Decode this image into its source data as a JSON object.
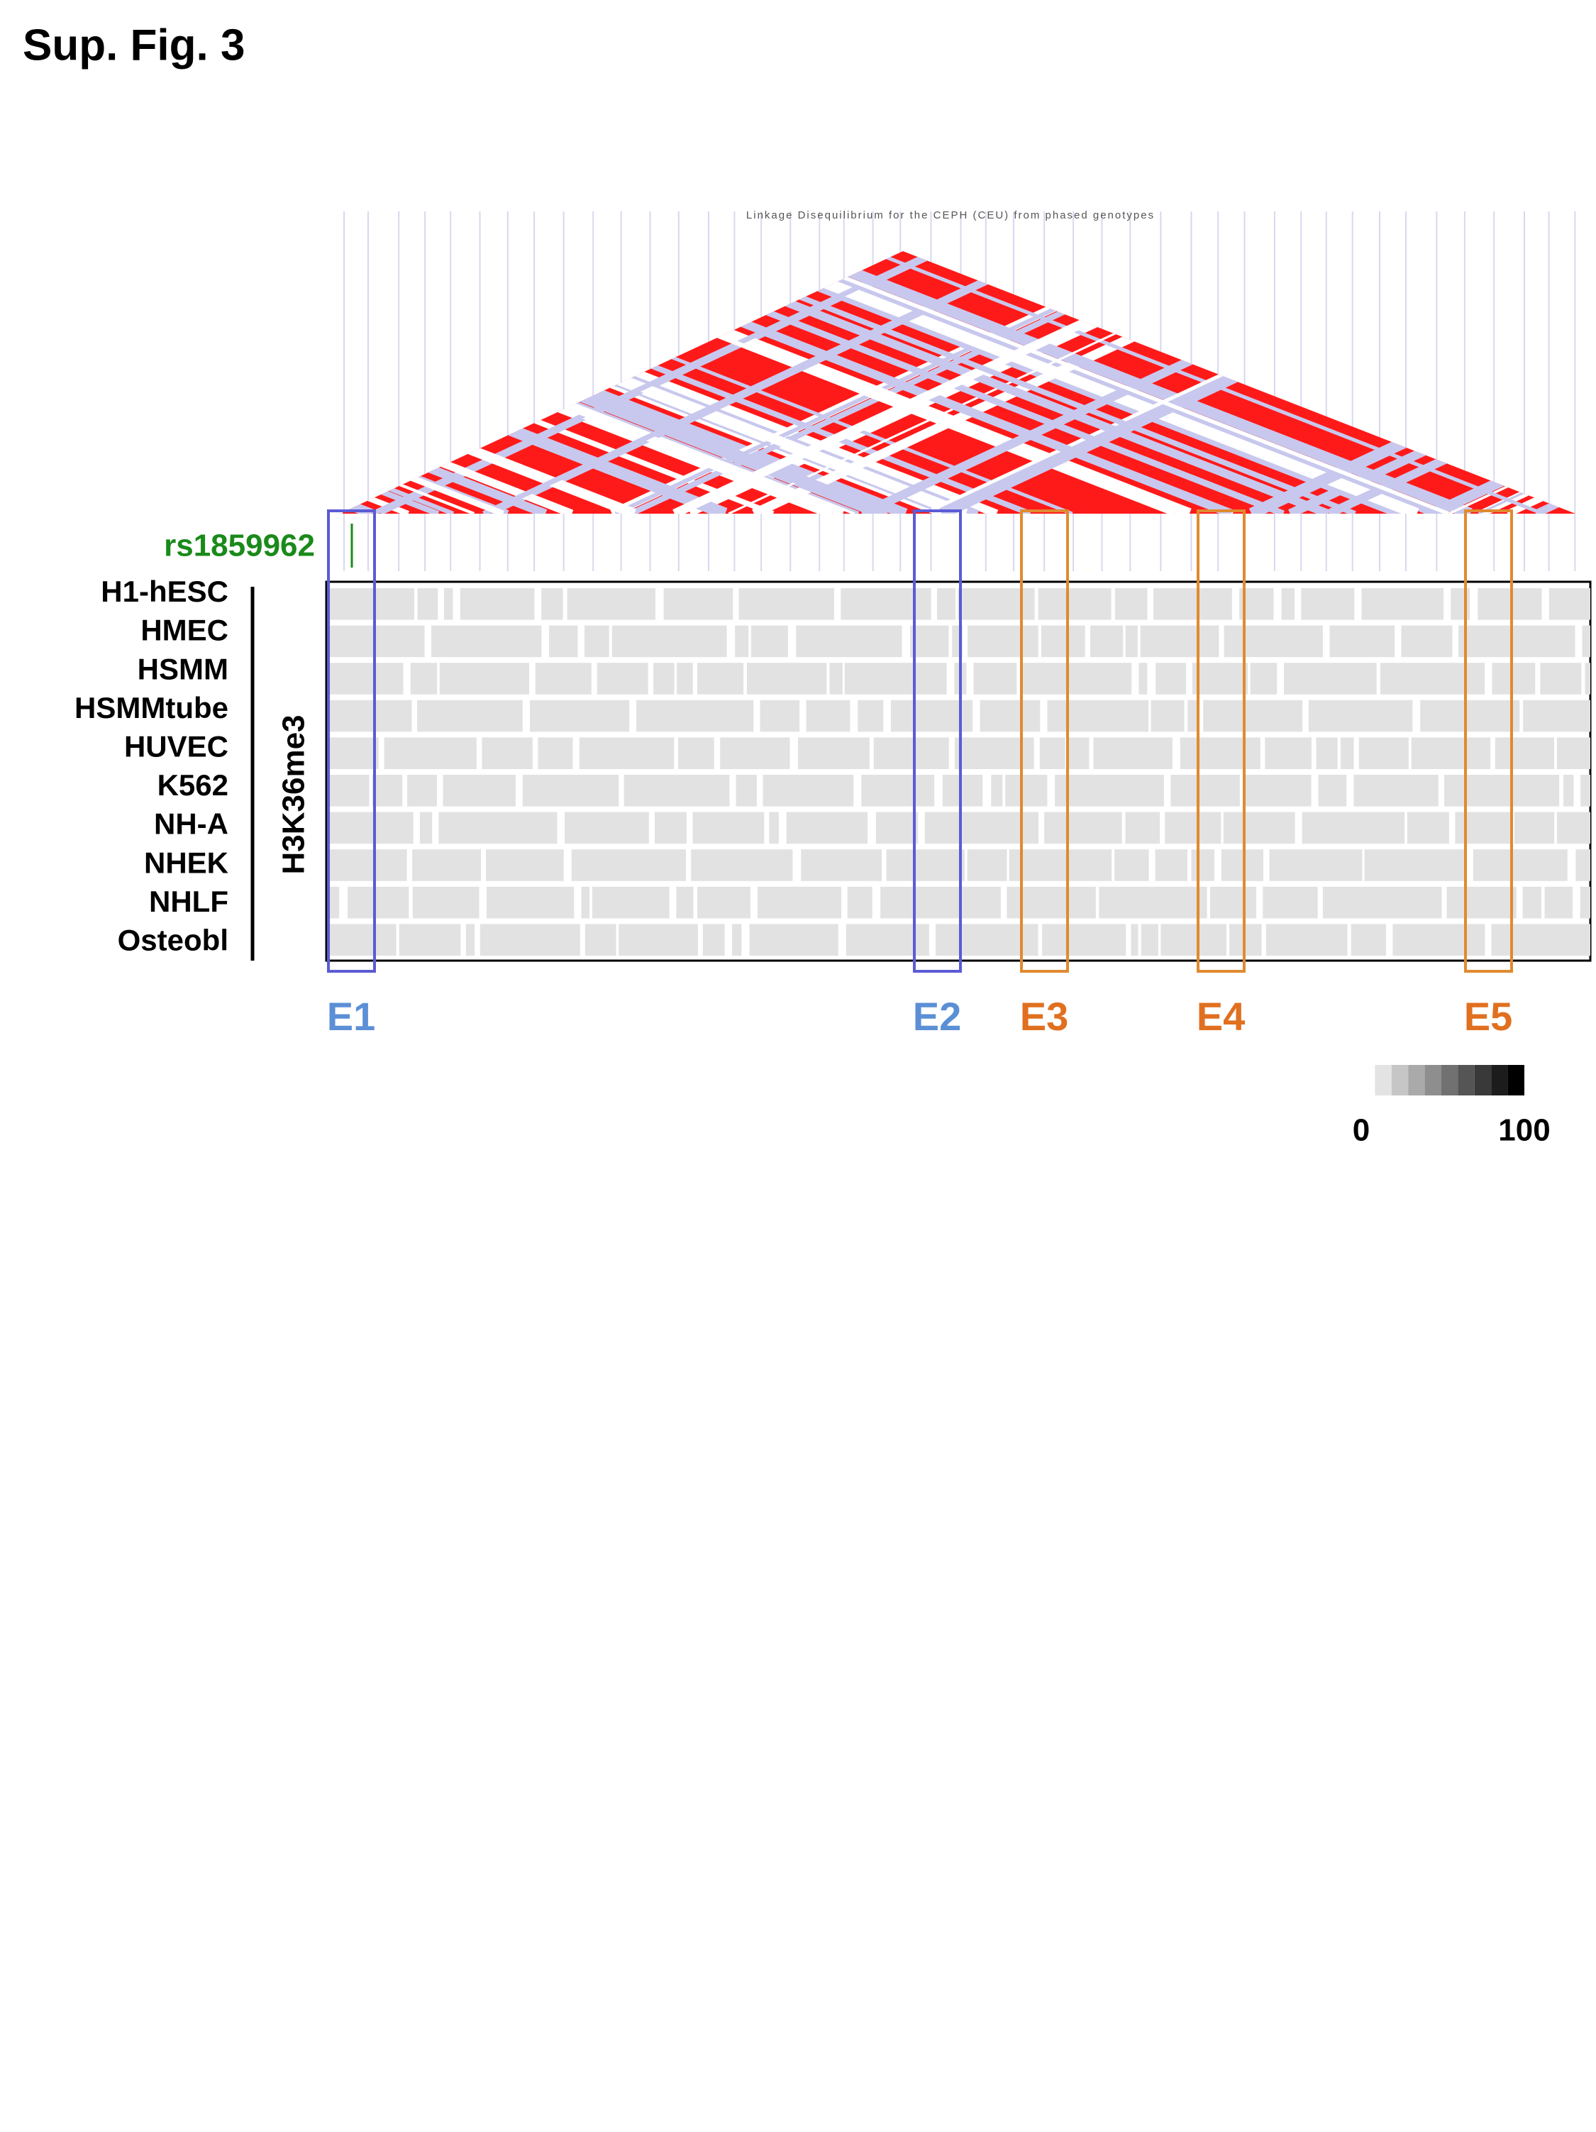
{
  "figure_label": "Sup. Fig. 3",
  "ld_plot": {
    "title": "Linkage Disequilibrium for the CEPH (CEU) from phased genotypes"
  },
  "snp": "rs1859962",
  "track": {
    "mark": "H3K36me3",
    "cell_lines": [
      "H1-hESC",
      "HMEC",
      "HSMM",
      "HSMMtube",
      "HUVEC",
      "K562",
      "NH-A",
      "NHEK",
      "NHLF",
      "Osteobl"
    ]
  },
  "regions": [
    {
      "label": "E1",
      "color": "#5b8fd6",
      "box_color": "#5b5bd6"
    },
    {
      "label": "E2",
      "color": "#5b8fd6",
      "box_color": "#5b5bd6"
    },
    {
      "label": "E3",
      "color": "#e07020",
      "box_color": "#e08a30"
    },
    {
      "label": "E4",
      "color": "#e07020",
      "box_color": "#e08a30"
    },
    {
      "label": "E5",
      "color": "#e07020",
      "box_color": "#e08a30"
    }
  ],
  "legend": {
    "min_label": 0,
    "max_label": 100
  }
}
